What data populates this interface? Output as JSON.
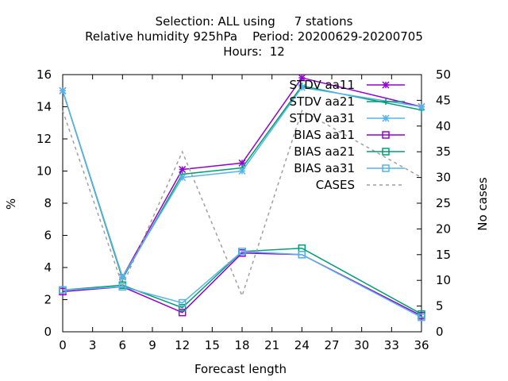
{
  "chart_data": {
    "type": "line",
    "title_lines": [
      "Selection: ALL using     7 stations",
      "Relative humidity 925hPa    Period: 20200629-20200705",
      "Hours:  12"
    ],
    "xlabel": "Forecast length",
    "ylabel": "%",
    "y2label": "No cases",
    "xlim": [
      0,
      36
    ],
    "ylim": [
      0,
      16
    ],
    "y2lim": [
      0,
      50
    ],
    "xticks": [
      0,
      3,
      6,
      9,
      12,
      15,
      18,
      21,
      24,
      27,
      30,
      33,
      36
    ],
    "yticks": [
      0,
      2,
      4,
      6,
      8,
      10,
      12,
      14,
      16
    ],
    "y2ticks": [
      0,
      5,
      10,
      15,
      20,
      25,
      30,
      35,
      40,
      45,
      50
    ],
    "x": [
      0,
      6,
      12,
      18,
      24,
      36
    ],
    "legend_position": "top-right",
    "series": [
      {
        "name": "STDV aa11",
        "axis": "y",
        "color": "#9400d3",
        "marker": "star",
        "dashed": false,
        "values": [
          15.0,
          3.4,
          10.1,
          10.5,
          15.8,
          14.0
        ]
      },
      {
        "name": "STDV aa21",
        "axis": "y",
        "color": "#009e73",
        "marker": "plus",
        "dashed": false,
        "values": [
          15.0,
          3.3,
          9.8,
          10.2,
          15.3,
          13.8
        ]
      },
      {
        "name": "STDV aa31",
        "axis": "y",
        "color": "#56b4e9",
        "marker": "star",
        "dashed": false,
        "values": [
          15.0,
          3.4,
          9.6,
          10.0,
          15.2,
          14.0
        ]
      },
      {
        "name": "BIAS aa11",
        "axis": "y",
        "color": "#9400d3",
        "marker": "square",
        "dashed": false,
        "values": [
          2.5,
          2.8,
          1.2,
          4.9,
          4.8,
          1.0
        ]
      },
      {
        "name": "BIAS aa21",
        "axis": "y",
        "color": "#009e73",
        "marker": "square",
        "dashed": false,
        "values": [
          2.6,
          2.9,
          1.5,
          5.0,
          5.2,
          1.1
        ]
      },
      {
        "name": "BIAS aa31",
        "axis": "y",
        "color": "#56b4e9",
        "marker": "square",
        "dashed": false,
        "values": [
          2.6,
          2.8,
          1.8,
          5.0,
          4.8,
          0.9
        ]
      },
      {
        "name": "CASES",
        "axis": "y2",
        "color": "#a0a0a0",
        "marker": "none",
        "dashed": true,
        "values": [
          43,
          9,
          35,
          7,
          43,
          30
        ]
      }
    ]
  }
}
